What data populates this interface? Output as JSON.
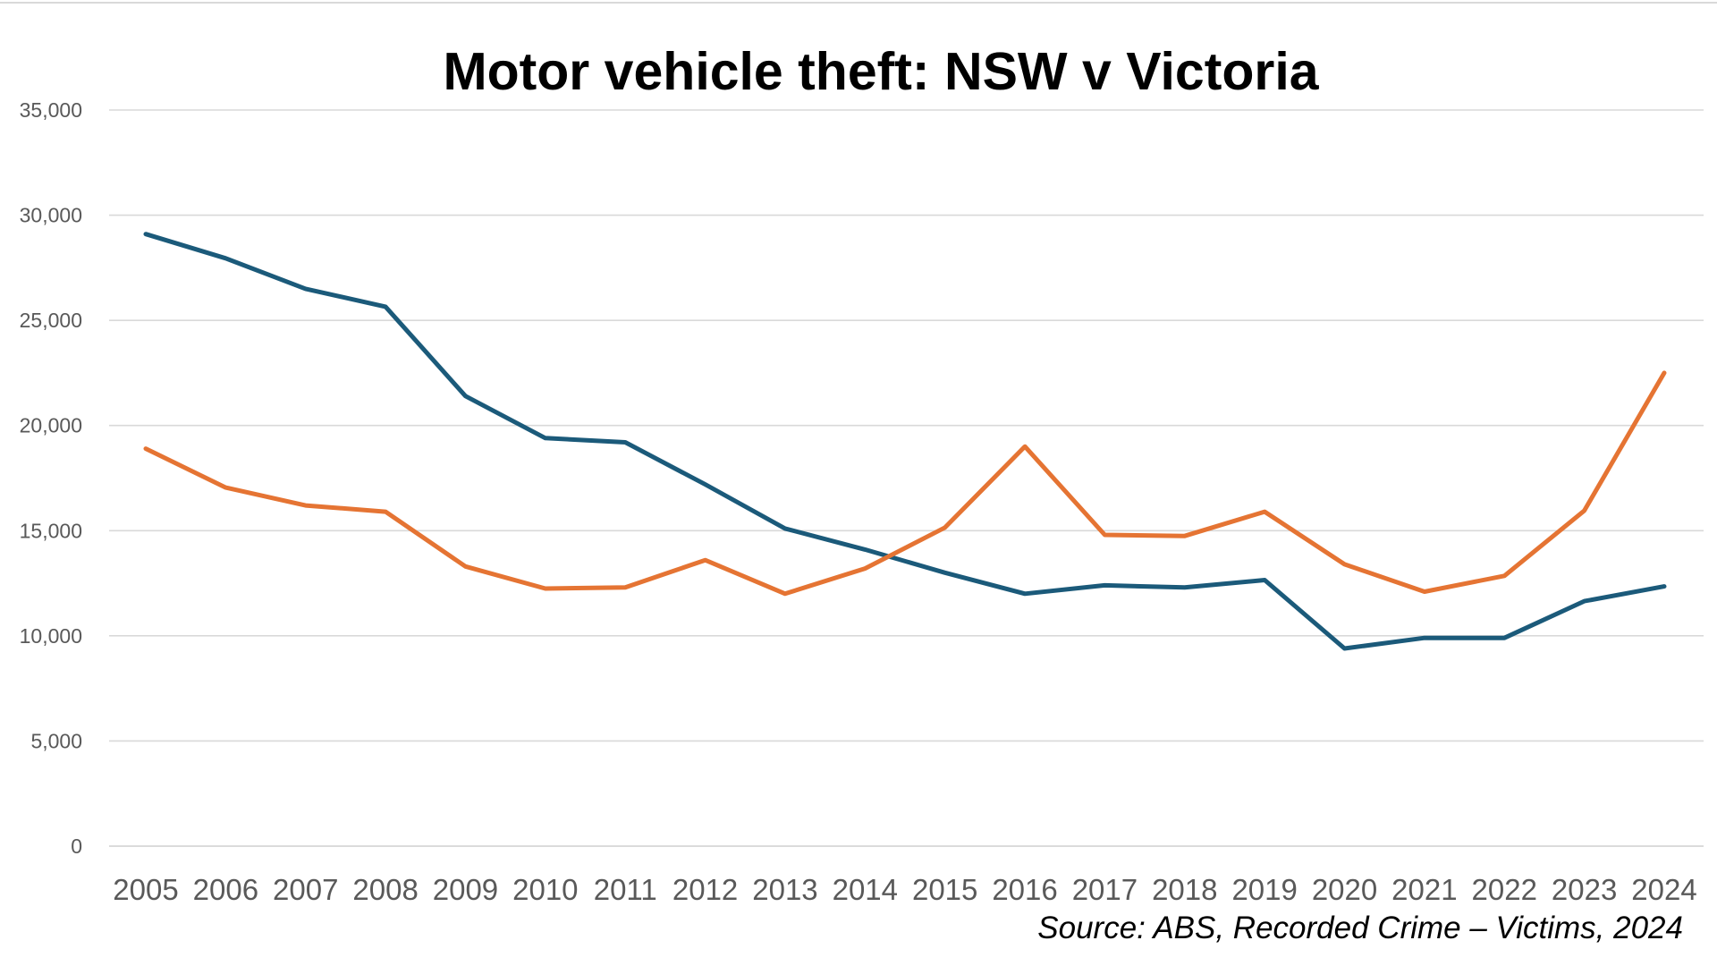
{
  "chart_data": {
    "type": "line",
    "title": "Motor vehicle theft: NSW v Victoria",
    "source": "Source: ABS, Recorded Crime – Victims, 2024",
    "xlabel": "",
    "ylabel": "",
    "ylim": [
      0,
      35000
    ],
    "yticks": [
      0,
      5000,
      10000,
      15000,
      20000,
      25000,
      30000,
      35000
    ],
    "ytick_labels": [
      "0",
      "5,000",
      "10,000",
      "15,000",
      "20,000",
      "25,000",
      "30,000",
      "35,000"
    ],
    "grid": true,
    "legend": "none",
    "categories": [
      "2005",
      "2006",
      "2007",
      "2008",
      "2009",
      "2010",
      "2011",
      "2012",
      "2013",
      "2014",
      "2015",
      "2016",
      "2017",
      "2018",
      "2019",
      "2020",
      "2021",
      "2022",
      "2023",
      "2024"
    ],
    "series": [
      {
        "name": "NSW",
        "color": "#1b5a7a",
        "values": [
          29100,
          27950,
          26500,
          25650,
          21400,
          19400,
          19200,
          17200,
          15100,
          14100,
          13000,
          12000,
          12400,
          12300,
          12650,
          9400,
          9900,
          9900,
          11650,
          12350
        ]
      },
      {
        "name": "Victoria",
        "color": "#e57433",
        "values": [
          18900,
          17050,
          16200,
          15900,
          13300,
          12250,
          12300,
          13600,
          12000,
          13200,
          15150,
          19000,
          14800,
          14750,
          15900,
          13400,
          12100,
          12850,
          15950,
          22500
        ]
      }
    ]
  }
}
